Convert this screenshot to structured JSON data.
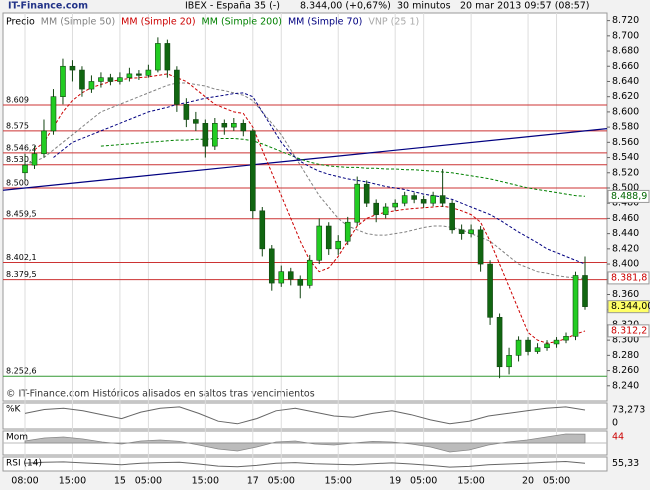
{
  "chart_data": {
    "type": "candlestick",
    "site": "IT-Finance.com",
    "title": "IBEX - España 35 (-)",
    "price_text": "8.344,00 (+0,67%)",
    "interval": "30 minutos",
    "date": "20 mar 2013 09:57 (08:57)",
    "footer": "© IT-Finance.com  Históricos alisados en saltos tras vencimientos",
    "price_name": "Precio",
    "legend_extra": "VNP (25 1)",
    "up_color": "#22cc22",
    "down_color": "#116611",
    "categories": [
      "08:00",
      null,
      null,
      null,
      null,
      "15:00",
      null,
      null,
      null,
      null,
      "15",
      null,
      null,
      "05:00",
      null,
      null,
      null,
      null,
      null,
      "15:00",
      null,
      null,
      null,
      null,
      "17",
      null,
      null,
      "05:00",
      null,
      null,
      null,
      null,
      null,
      "15:00",
      null,
      null,
      null,
      null,
      null,
      "19",
      null,
      null,
      "05:00",
      null,
      null,
      null,
      null,
      "15:00",
      null,
      null,
      null,
      null,
      null,
      "20",
      null,
      null,
      "05:00",
      null,
      null,
      null
    ],
    "open": [
      8.52,
      8.53,
      8.545,
      8.575,
      8.62,
      8.66,
      8.655,
      8.63,
      8.64,
      8.645,
      8.64,
      8.645,
      8.65,
      8.648,
      8.655,
      8.69,
      8.655,
      8.61,
      8.59,
      8.585,
      8.555,
      8.585,
      8.58,
      8.585,
      8.575,
      8.47,
      8.42,
      8.375,
      8.39,
      8.38,
      8.372,
      8.405,
      8.45,
      8.42,
      8.43,
      8.455,
      8.505,
      8.48,
      8.465,
      8.475,
      8.48,
      8.49,
      8.485,
      8.48,
      8.49,
      8.48,
      8.445,
      8.44,
      8.445,
      8.4,
      8.33,
      8.265,
      8.28,
      8.3,
      8.285,
      8.29,
      8.295,
      8.3,
      8.305,
      8.385
    ],
    "high": [
      8.545,
      8.555,
      8.59,
      8.63,
      8.67,
      8.668,
      8.66,
      8.648,
      8.652,
      8.65,
      8.652,
      8.658,
      8.655,
      8.662,
      8.698,
      8.695,
      8.66,
      8.618,
      8.6,
      8.59,
      8.592,
      8.59,
      8.592,
      8.59,
      8.578,
      8.475,
      8.425,
      8.398,
      8.395,
      8.385,
      8.412,
      8.46,
      8.455,
      8.438,
      8.462,
      8.515,
      8.51,
      8.485,
      8.48,
      8.485,
      8.495,
      8.494,
      8.49,
      8.495,
      8.525,
      8.484,
      8.452,
      8.452,
      8.45,
      8.405,
      8.335,
      8.29,
      8.305,
      8.304,
      8.296,
      8.3,
      8.304,
      8.31,
      8.39,
      8.41
    ],
    "low": [
      8.51,
      8.525,
      8.54,
      8.57,
      8.61,
      8.64,
      8.62,
      8.625,
      8.632,
      8.635,
      8.636,
      8.64,
      8.642,
      8.645,
      8.652,
      8.645,
      8.6,
      8.58,
      8.575,
      8.54,
      8.55,
      8.57,
      8.575,
      8.568,
      8.46,
      8.41,
      8.365,
      8.37,
      8.372,
      8.355,
      8.368,
      8.4,
      8.412,
      8.412,
      8.425,
      8.45,
      8.475,
      8.455,
      8.46,
      8.47,
      8.476,
      8.48,
      8.474,
      8.476,
      8.475,
      8.44,
      8.432,
      8.435,
      8.39,
      8.32,
      8.25,
      8.255,
      8.272,
      8.28,
      8.282,
      8.286,
      8.29,
      8.296,
      8.3,
      8.34
    ],
    "close": [
      8.53,
      8.545,
      8.575,
      8.62,
      8.66,
      8.655,
      8.63,
      8.64,
      8.645,
      8.64,
      8.645,
      8.65,
      8.648,
      8.655,
      8.69,
      8.655,
      8.61,
      8.59,
      8.585,
      8.555,
      8.585,
      8.58,
      8.585,
      8.575,
      8.47,
      8.42,
      8.375,
      8.39,
      8.38,
      8.372,
      8.405,
      8.45,
      8.42,
      8.43,
      8.455,
      8.505,
      8.48,
      8.465,
      8.475,
      8.48,
      8.49,
      8.485,
      8.48,
      8.49,
      8.48,
      8.445,
      8.44,
      8.445,
      8.4,
      8.33,
      8.265,
      8.28,
      8.3,
      8.285,
      8.29,
      8.295,
      8.3,
      8.305,
      8.385,
      8.344
    ],
    "series": [
      {
        "name": "MM (Simple 50)",
        "color": "#808080",
        "values": [
          8.53,
          8.535,
          8.54,
          8.55,
          8.56,
          8.57,
          8.58,
          8.59,
          8.6,
          8.605,
          8.61,
          8.615,
          8.62,
          8.625,
          8.63,
          8.635,
          8.638,
          8.638,
          8.636,
          8.634,
          8.63,
          8.628,
          8.625,
          8.622,
          8.615,
          8.6,
          8.585,
          8.57,
          8.55,
          8.53,
          8.51,
          8.49,
          8.475,
          8.46,
          8.45,
          8.445,
          8.44,
          8.438,
          8.438,
          8.44,
          8.442,
          8.445,
          8.448,
          8.45,
          8.45,
          8.448,
          8.445,
          8.44,
          8.435,
          8.43,
          8.42,
          8.41,
          8.4,
          8.395,
          8.39,
          8.388,
          8.385,
          8.383,
          8.382,
          8.381
        ]
      },
      {
        "name": "MM (Simple 20)",
        "color": "#cc0000",
        "values": [
          null,
          8.55,
          8.56,
          8.58,
          8.6,
          8.615,
          8.625,
          8.632,
          8.636,
          8.64,
          8.642,
          8.644,
          8.645,
          8.646,
          8.648,
          8.65,
          8.645,
          8.64,
          8.63,
          8.62,
          8.61,
          8.605,
          8.6,
          8.598,
          8.58,
          8.55,
          8.52,
          8.49,
          8.46,
          8.43,
          8.405,
          8.39,
          8.395,
          8.41,
          8.43,
          8.45,
          8.46,
          8.465,
          8.468,
          8.47,
          8.472,
          8.473,
          8.474,
          8.475,
          8.476,
          8.474,
          8.47,
          8.465,
          8.455,
          8.43,
          8.4,
          8.37,
          8.34,
          8.31,
          8.3,
          8.296,
          8.298,
          8.302,
          8.308,
          8.312
        ]
      },
      {
        "name": "MM (Simple 200)",
        "color": "#008000",
        "values": [
          null,
          null,
          null,
          null,
          null,
          null,
          null,
          null,
          8.555,
          8.556,
          8.557,
          8.558,
          8.559,
          8.56,
          8.561,
          8.562,
          8.563,
          8.563,
          8.564,
          8.564,
          8.565,
          8.565,
          8.565,
          8.564,
          8.562,
          8.558,
          8.553,
          8.548,
          8.543,
          8.538,
          8.534,
          8.531,
          8.529,
          8.528,
          8.527,
          8.527,
          8.526,
          8.526,
          8.525,
          8.525,
          8.524,
          8.524,
          8.523,
          8.522,
          8.521,
          8.52,
          8.518,
          8.516,
          8.514,
          8.512,
          8.509,
          8.506,
          8.503,
          8.5,
          8.498,
          8.496,
          8.494,
          8.492,
          8.49,
          8.489
        ]
      },
      {
        "name": "MM (Simple 70)",
        "color": "#000080",
        "values": [
          null,
          null,
          null,
          8.54,
          8.55,
          8.56,
          8.565,
          8.57,
          8.575,
          8.58,
          8.585,
          8.59,
          8.595,
          8.6,
          8.603,
          8.606,
          8.61,
          8.612,
          8.615,
          8.618,
          8.62,
          8.622,
          8.624,
          8.625,
          8.62,
          8.6,
          8.58,
          8.56,
          8.545,
          8.535,
          8.528,
          8.522,
          8.518,
          8.515,
          8.512,
          8.51,
          8.508,
          8.505,
          8.502,
          8.5,
          8.498,
          8.495,
          8.492,
          8.49,
          8.488,
          8.485,
          8.48,
          8.475,
          8.47,
          8.465,
          8.458,
          8.45,
          8.442,
          8.435,
          8.428,
          8.42,
          8.415,
          8.41,
          8.405,
          8.4
        ]
      }
    ],
    "trendline": {
      "color": "#000080",
      "values": [
        8.497,
        8.578
      ]
    },
    "levels": [
      {
        "value": 8.609,
        "label": "8.609",
        "color": "#cc3333"
      },
      {
        "value": 8.575,
        "label": "8.575",
        "color": "#cc3333"
      },
      {
        "value": 8.5462,
        "label": "8.546,2",
        "color": "#cc3333"
      },
      {
        "value": 8.5306,
        "label": "8.530,6",
        "color": "#cc3333"
      },
      {
        "value": 8.5,
        "label": "8.500",
        "color": "#cc3333"
      },
      {
        "value": 8.4595,
        "label": "8.459,5",
        "color": "#cc3333"
      },
      {
        "value": 8.4021,
        "label": "8.402,1",
        "color": "#cc3333"
      },
      {
        "value": 8.3795,
        "label": "8.379,5",
        "color": "#cc3333"
      },
      {
        "value": 8.2526,
        "label": "8.252,6",
        "color": "#339933"
      }
    ],
    "last_labels": [
      {
        "value": 8.4889,
        "label": "8.488,9",
        "color": "#006600",
        "background": "#ffffff"
      },
      {
        "value": 8.3818,
        "label": "8.381,8",
        "color": "#cc0000",
        "background": "#ffffff"
      },
      {
        "value": 8.344,
        "label": "8.344,00",
        "color": "#000000",
        "background": "#ffff66"
      },
      {
        "value": 8.3122,
        "label": "8.312,2",
        "color": "#cc0000",
        "background": "#ffffff"
      }
    ],
    "ylim": [
      8.22,
      8.73
    ],
    "yticks": [
      {
        "value": 8.72,
        "label": "8.720"
      },
      {
        "value": 8.7,
        "label": "8.700"
      },
      {
        "value": 8.68,
        "label": "8.680"
      },
      {
        "value": 8.66,
        "label": "8.660"
      },
      {
        "value": 8.64,
        "label": "8.640"
      },
      {
        "value": 8.62,
        "label": "8.620"
      },
      {
        "value": 8.6,
        "label": "8.600"
      },
      {
        "value": 8.58,
        "label": "8.580"
      },
      {
        "value": 8.56,
        "label": "8.560"
      },
      {
        "value": 8.54,
        "label": "8.540"
      },
      {
        "value": 8.52,
        "label": "8.520"
      },
      {
        "value": 8.5,
        "label": "8.500"
      },
      {
        "value": 8.48,
        "label": "8.480"
      },
      {
        "value": 8.46,
        "label": "8.460"
      },
      {
        "value": 8.44,
        "label": "8.440"
      },
      {
        "value": 8.42,
        "label": "8.420"
      },
      {
        "value": 8.4,
        "label": "8.400"
      },
      {
        "value": 8.38,
        "label": "8.380"
      },
      {
        "value": 8.36,
        "label": "8.360"
      },
      {
        "value": 8.34,
        "label": "8.340"
      },
      {
        "value": 8.32,
        "label": "8.320"
      },
      {
        "value": 8.3,
        "label": "8.300"
      },
      {
        "value": 8.28,
        "label": "8.280"
      },
      {
        "value": 8.26,
        "label": "8.260"
      },
      {
        "value": 8.24,
        "label": "8.240"
      }
    ],
    "oscillators": [
      {
        "name": "%K",
        "color": "#666666",
        "fill": false,
        "ylim": [
          0,
          100
        ],
        "yticks": [
          0
        ],
        "last": {
          "value": 73.273,
          "label": "73,273"
        },
        "values": [
          60,
          75,
          80,
          70,
          55,
          40,
          65,
          80,
          85,
          60,
          30,
          20,
          40,
          70,
          80,
          65,
          50,
          45,
          60,
          70,
          55,
          35,
          20,
          30,
          50,
          60,
          70,
          80,
          85,
          73
        ]
      },
      {
        "name": "Mom",
        "color": "#888888",
        "fill": true,
        "ylim": [
          -60,
          60
        ],
        "yticks": [],
        "last": 44,
        "values": [
          10,
          25,
          30,
          20,
          5,
          -5,
          10,
          15,
          8,
          -10,
          -30,
          -40,
          -20,
          5,
          10,
          -5,
          -10,
          0,
          8,
          5,
          -5,
          -20,
          -45,
          -35,
          -10,
          5,
          15,
          30,
          45,
          44
        ]
      },
      {
        "name": "RSI (14)",
        "color": "#666666",
        "fill": false,
        "ylim": [
          0,
          100
        ],
        "yticks": [],
        "last": {
          "value": 55.33,
          "label": "55,33"
        },
        "values": [
          55,
          62,
          65,
          58,
          52,
          45,
          55,
          60,
          62,
          50,
          35,
          30,
          40,
          55,
          60,
          52,
          48,
          45,
          52,
          58,
          50,
          40,
          28,
          33,
          45,
          50,
          55,
          62,
          68,
          55.33
        ]
      }
    ]
  }
}
